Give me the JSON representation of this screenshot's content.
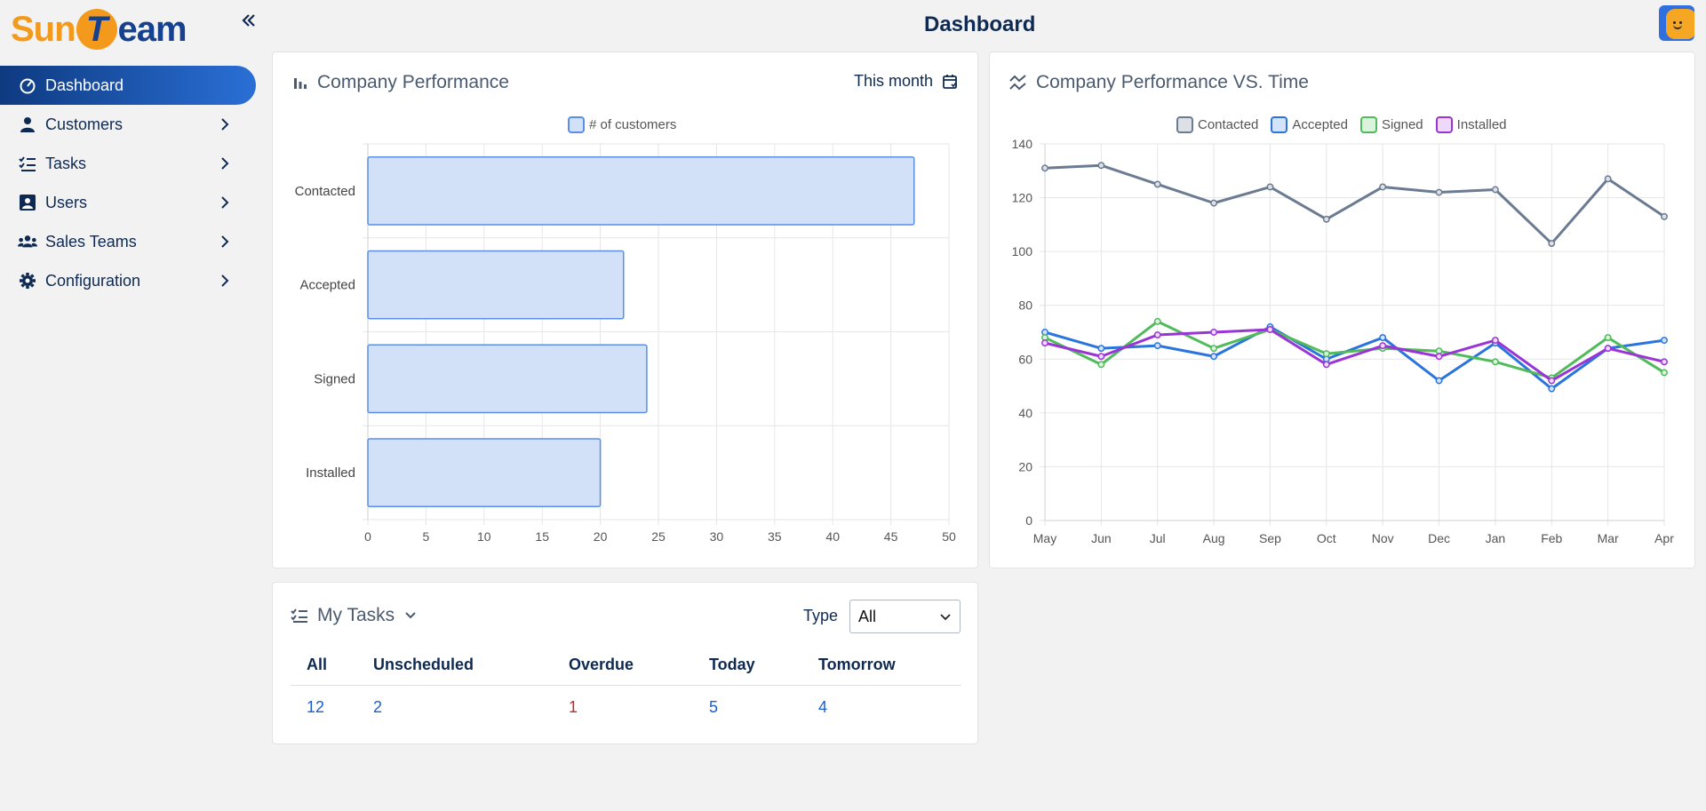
{
  "app": {
    "logo": {
      "part1": "Sun",
      "part2": "T",
      "part3": "eam"
    },
    "page_title": "Dashboard"
  },
  "sidebar": {
    "items": [
      {
        "label": "Dashboard",
        "icon": "gauge-icon"
      },
      {
        "label": "Customers",
        "icon": "person-icon"
      },
      {
        "label": "Tasks",
        "icon": "checklist-icon"
      },
      {
        "label": "Users",
        "icon": "user-badge-icon"
      },
      {
        "label": "Sales Teams",
        "icon": "team-icon"
      },
      {
        "label": "Configuration",
        "icon": "gear-icon"
      }
    ]
  },
  "perf_card": {
    "title": "Company Performance",
    "period": "This month",
    "legend": "# of customers"
  },
  "perf_time_card": {
    "title": "Company Performance VS. Time"
  },
  "tasks_card": {
    "title": "My Tasks",
    "type_label": "Type",
    "type_value": "All",
    "headers": [
      "All",
      "Unscheduled",
      "Overdue",
      "Today",
      "Tomorrow"
    ],
    "values": [
      "12",
      "2",
      "1",
      "5",
      "4"
    ]
  },
  "colors": {
    "accent": "#1a5fd0",
    "bar_fill": "#d2e1f8",
    "bar_stroke": "#5b8ee6",
    "contacted": "#6b7b91",
    "accepted": "#2a74dd",
    "signed": "#4fbb5a",
    "installed": "#9b34d6"
  },
  "chart_data": [
    {
      "type": "bar",
      "orientation": "horizontal",
      "categories": [
        "Contacted",
        "Accepted",
        "Signed",
        "Installed"
      ],
      "series": [
        {
          "name": "# of customers",
          "values": [
            47,
            22,
            24,
            20
          ]
        }
      ],
      "xlim": [
        0,
        50
      ],
      "xticks": [
        0,
        5,
        10,
        15,
        20,
        25,
        30,
        35,
        40,
        45,
        50
      ],
      "grid": true,
      "legend": "top"
    },
    {
      "type": "line",
      "x": [
        "May",
        "Jun",
        "Jul",
        "Aug",
        "Sep",
        "Oct",
        "Nov",
        "Dec",
        "Jan",
        "Feb",
        "Mar",
        "Apr"
      ],
      "series": [
        {
          "name": "Contacted",
          "values": [
            131,
            132,
            125,
            118,
            124,
            112,
            124,
            122,
            123,
            103,
            127,
            113
          ]
        },
        {
          "name": "Accepted",
          "values": [
            70,
            64,
            65,
            61,
            72,
            60,
            68,
            52,
            66,
            49,
            64,
            67
          ]
        },
        {
          "name": "Signed",
          "values": [
            68,
            58,
            74,
            64,
            71,
            62,
            64,
            63,
            59,
            53,
            68,
            55
          ]
        },
        {
          "name": "Installed",
          "values": [
            66,
            61,
            69,
            70,
            71,
            58,
            65,
            61,
            67,
            52,
            64,
            59
          ]
        }
      ],
      "ylim": [
        0,
        140
      ],
      "yticks": [
        0,
        20,
        40,
        60,
        80,
        100,
        120,
        140
      ],
      "grid": true,
      "legend": "top"
    }
  ]
}
